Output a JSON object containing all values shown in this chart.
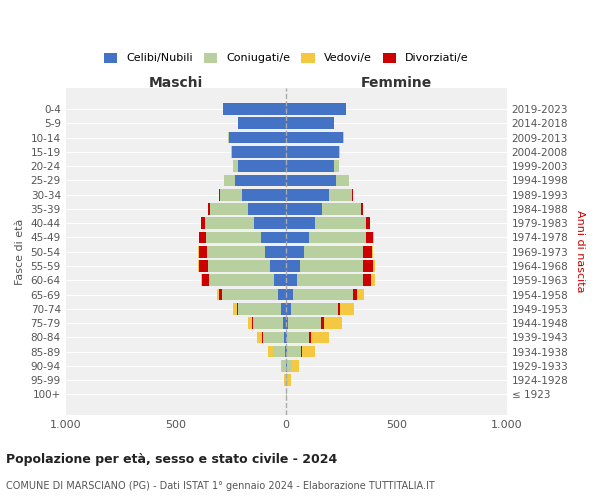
{
  "age_groups": [
    "100+",
    "95-99",
    "90-94",
    "85-89",
    "80-84",
    "75-79",
    "70-74",
    "65-69",
    "60-64",
    "55-59",
    "50-54",
    "45-49",
    "40-44",
    "35-39",
    "30-34",
    "25-29",
    "20-24",
    "15-19",
    "10-14",
    "5-9",
    "0-4"
  ],
  "birth_years": [
    "≤ 1923",
    "1924-1928",
    "1929-1933",
    "1934-1938",
    "1939-1943",
    "1944-1948",
    "1949-1953",
    "1954-1958",
    "1959-1963",
    "1964-1968",
    "1969-1973",
    "1974-1978",
    "1979-1983",
    "1984-1988",
    "1989-1993",
    "1994-1998",
    "1999-2003",
    "2004-2008",
    "2009-2013",
    "2014-2018",
    "2019-2023"
  ],
  "males": {
    "celibi": [
      0,
      1,
      2,
      5,
      8,
      15,
      25,
      38,
      55,
      75,
      95,
      115,
      145,
      175,
      200,
      230,
      220,
      245,
      260,
      220,
      285
    ],
    "coniugati": [
      2,
      5,
      18,
      55,
      95,
      135,
      195,
      255,
      295,
      280,
      265,
      250,
      225,
      170,
      100,
      50,
      20,
      5,
      2,
      0,
      0
    ],
    "vedovi": [
      0,
      2,
      5,
      20,
      25,
      20,
      18,
      10,
      8,
      5,
      2,
      2,
      1,
      0,
      0,
      0,
      0,
      0,
      0,
      0,
      0
    ],
    "divorziati": [
      0,
      0,
      0,
      2,
      5,
      5,
      5,
      12,
      30,
      42,
      36,
      30,
      15,
      8,
      5,
      2,
      0,
      0,
      0,
      0,
      0
    ]
  },
  "females": {
    "nubili": [
      0,
      1,
      2,
      3,
      5,
      10,
      20,
      32,
      48,
      62,
      82,
      102,
      132,
      162,
      195,
      228,
      218,
      238,
      258,
      218,
      272
    ],
    "coniugate": [
      2,
      8,
      25,
      65,
      100,
      150,
      215,
      272,
      302,
      285,
      268,
      258,
      228,
      175,
      105,
      55,
      22,
      5,
      2,
      0,
      0
    ],
    "vedove": [
      2,
      12,
      32,
      62,
      82,
      82,
      65,
      35,
      18,
      10,
      5,
      3,
      2,
      1,
      0,
      0,
      0,
      0,
      0,
      0,
      0
    ],
    "divorziate": [
      0,
      0,
      0,
      2,
      8,
      10,
      8,
      15,
      35,
      45,
      40,
      35,
      20,
      10,
      5,
      2,
      0,
      0,
      0,
      0,
      0
    ]
  },
  "colors": {
    "celibi_nubili": "#4472c4",
    "coniugati": "#b8cfa0",
    "vedovi": "#f5c842",
    "divorziati": "#cc0000"
  },
  "xlim": 1000,
  "title": "Popolazione per età, sesso e stato civile - 2024",
  "subtitle": "COMUNE DI MARSCIANO (PG) - Dati ISTAT 1° gennaio 2024 - Elaborazione TUTTITALIA.IT",
  "ylabel": "Fasce di età",
  "ylabel_right": "Anni di nascita",
  "xlabel_left": "Maschi",
  "xlabel_right": "Femmine",
  "bg_color": "#f0f0f0"
}
